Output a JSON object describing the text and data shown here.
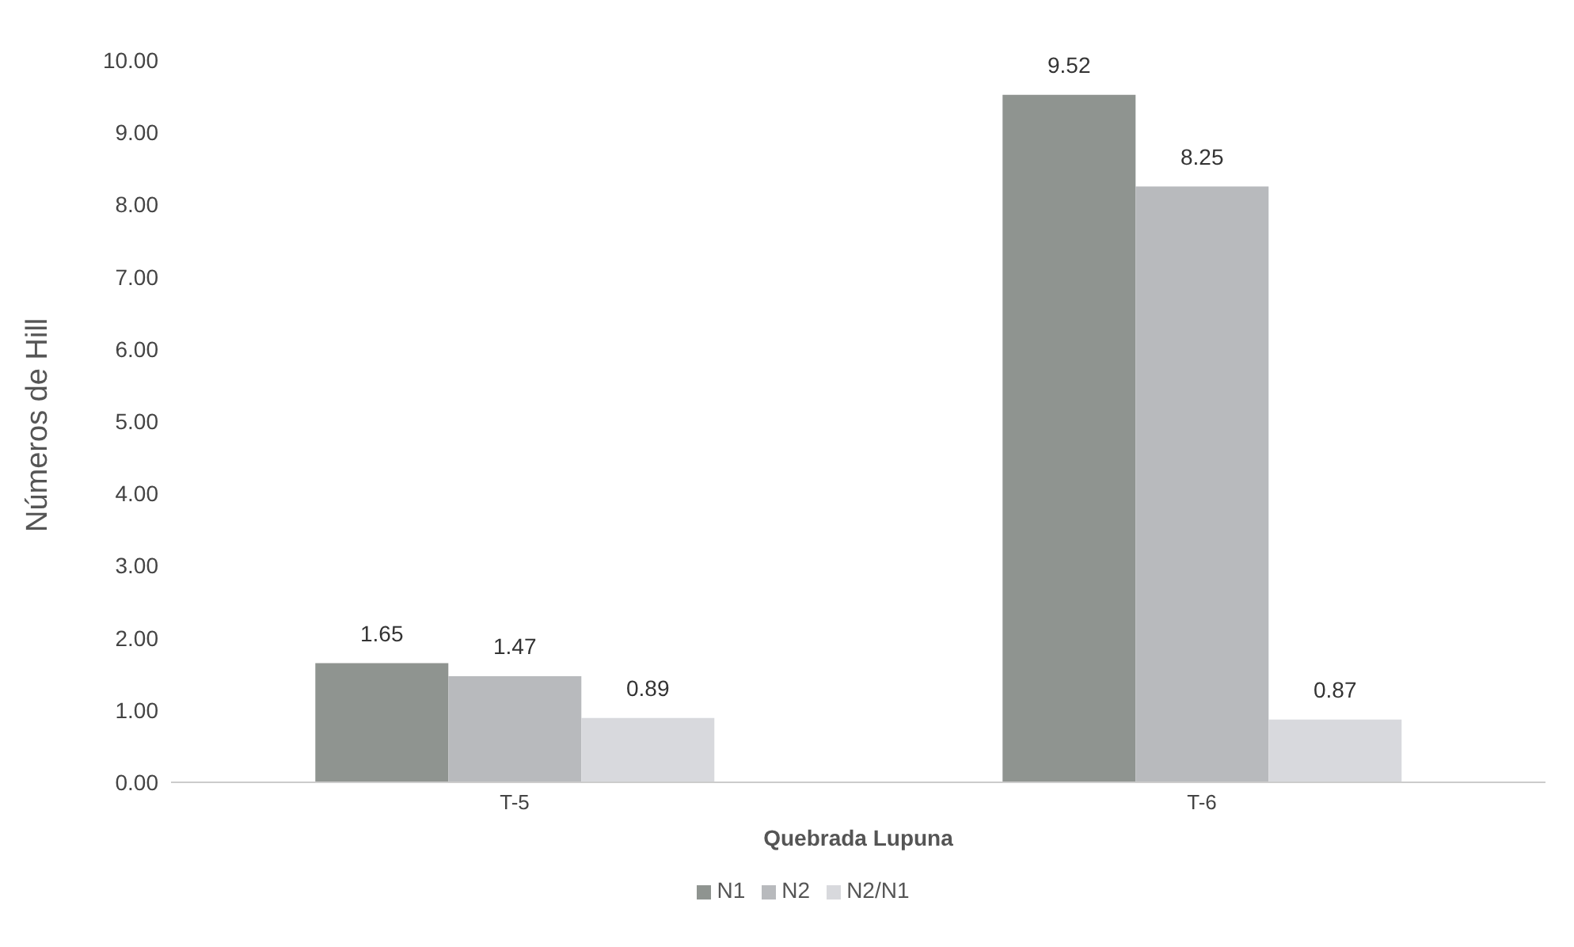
{
  "chart_data": {
    "type": "bar",
    "xlabel": "Quebrada Lupuna",
    "ylabel": "Números de Hill",
    "categories": [
      "T-5",
      "T-6"
    ],
    "series": [
      {
        "name": "N1",
        "color": "#8f9490",
        "values": [
          1.65,
          9.52
        ]
      },
      {
        "name": "N2",
        "color": "#b8babd",
        "values": [
          1.47,
          8.25
        ]
      },
      {
        "name": "N2/N1",
        "color": "#d8d9dd",
        "values": [
          0.89,
          0.87
        ]
      }
    ],
    "ylim": [
      0,
      10
    ],
    "yticks": [
      {
        "value": 0,
        "label": "0.00"
      },
      {
        "value": 1,
        "label": "1.00"
      },
      {
        "value": 2,
        "label": "2.00"
      },
      {
        "value": 3,
        "label": "3.00"
      },
      {
        "value": 4,
        "label": "4.00"
      },
      {
        "value": 5,
        "label": "5.00"
      },
      {
        "value": 6,
        "label": "6.00"
      },
      {
        "value": 7,
        "label": "7.00"
      },
      {
        "value": 8,
        "label": "8.00"
      },
      {
        "value": 9,
        "label": "9.00"
      },
      {
        "value": 10,
        "label": "10.00"
      }
    ],
    "grid": false,
    "legend": "bottom",
    "data_labels": true
  }
}
